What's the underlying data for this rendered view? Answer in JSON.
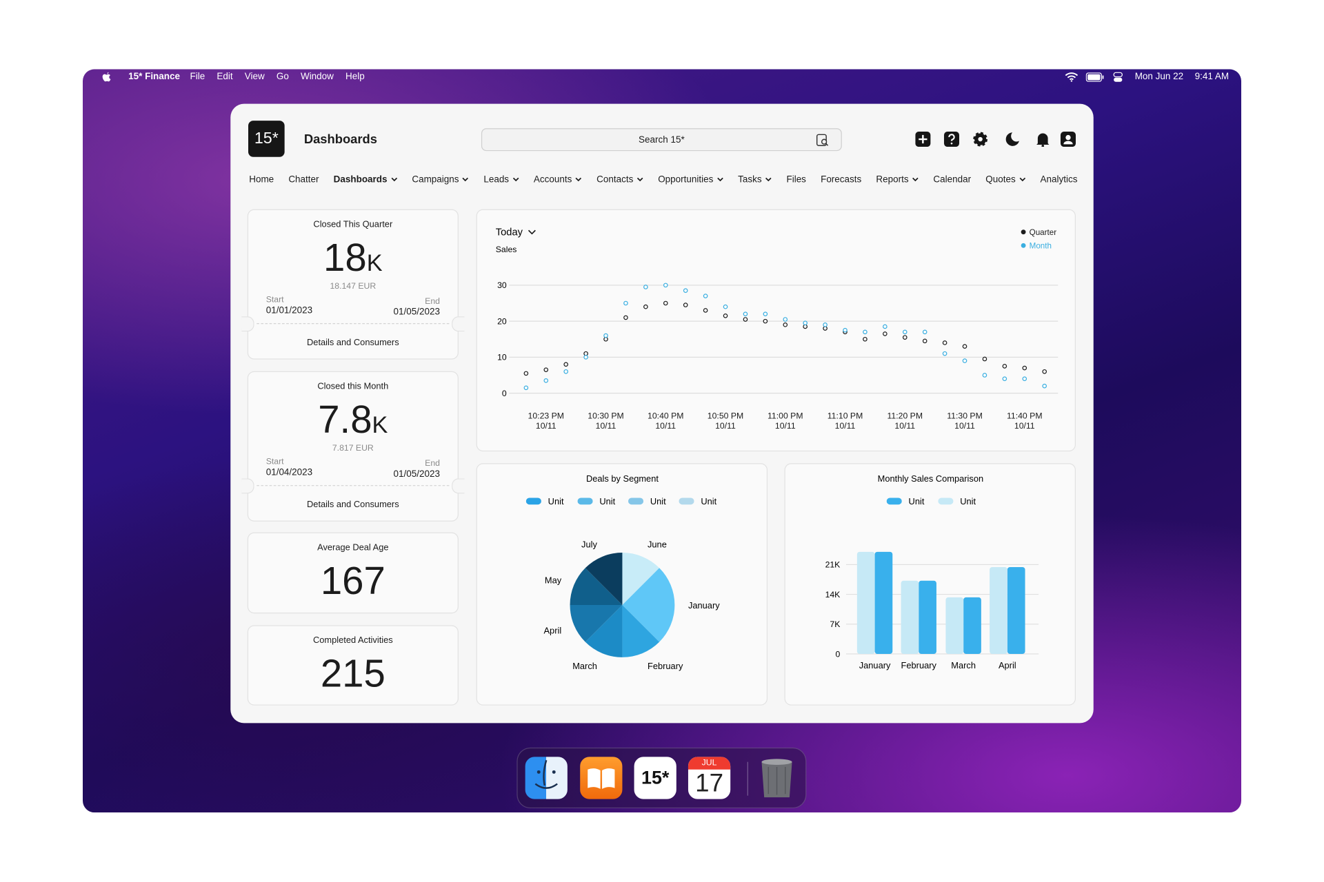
{
  "menu_bar": {
    "app": "15* Finance",
    "menus": [
      "File",
      "Edit",
      "View",
      "Go",
      "Window",
      "Help"
    ],
    "date": "Mon Jun 22",
    "time": "9:41 AM"
  },
  "header": {
    "logo": "15*",
    "title": "Dashboards",
    "search_placeholder": "Search 15*"
  },
  "nav": [
    {
      "label": "Home"
    },
    {
      "label": "Chatter"
    },
    {
      "label": "Dashboards",
      "dropdown": true,
      "active": true
    },
    {
      "label": "Campaigns",
      "dropdown": true
    },
    {
      "label": "Leads",
      "dropdown": true
    },
    {
      "label": "Accounts",
      "dropdown": true
    },
    {
      "label": "Contacts",
      "dropdown": true
    },
    {
      "label": "Opportunities",
      "dropdown": true
    },
    {
      "label": "Tasks",
      "dropdown": true
    },
    {
      "label": "Files"
    },
    {
      "label": "Forecasts"
    },
    {
      "label": "Reports",
      "dropdown": true
    },
    {
      "label": "Calendar"
    },
    {
      "label": "Quotes",
      "dropdown": true
    },
    {
      "label": "Analytics"
    }
  ],
  "cards": [
    {
      "title": "Closed This Quarter",
      "value": "18",
      "unit": "K",
      "subvalue": "18.147 EUR",
      "start_label": "Start",
      "start": "01/01/2023",
      "end_label": "End",
      "end": "01/05/2023",
      "link": "Details and Consumers"
    },
    {
      "title": "Closed this Month",
      "value": "7.8",
      "unit": "K",
      "subvalue": "7.817 EUR",
      "start_label": "Start",
      "start": "01/04/2023",
      "end_label": "End",
      "end": "01/05/2023",
      "link": "Details and Consumers"
    },
    {
      "title": "Average Deal Age",
      "value": "167"
    },
    {
      "title": "Completed Activities",
      "value": "215"
    }
  ],
  "chart_data": [
    {
      "type": "line",
      "title": "Today",
      "subtitle": "Sales",
      "categories": [
        null,
        "10:23 PM\n10/11",
        null,
        null,
        "10:30 PM\n10/11",
        null,
        null,
        "10:40 PM\n10/11",
        null,
        null,
        "10:50 PM\n10/11",
        null,
        null,
        "11:00 PM\n10/11",
        null,
        null,
        "11:10 PM\n10/11",
        null,
        null,
        "11:20 PM\n10/11",
        null,
        null,
        "11:30 PM\n10/11",
        null,
        null,
        "11:40 PM\n10/11",
        null
      ],
      "series": [
        {
          "name": "Quarter",
          "color": "#1c1c1c",
          "values": [
            5.5,
            6.5,
            8,
            11,
            15,
            21,
            24,
            25,
            24.5,
            23,
            21.5,
            20.5,
            20,
            19,
            18.5,
            18,
            17,
            15,
            16.5,
            15.5,
            14.5,
            14,
            13,
            9.5,
            7.5,
            7,
            6
          ]
        },
        {
          "name": "Month",
          "color": "#3aaee0",
          "values": [
            1.5,
            3.5,
            6,
            10,
            16,
            25,
            29.5,
            30,
            28.5,
            27,
            24,
            22,
            22,
            20.5,
            19.5,
            19,
            17.5,
            17,
            18.5,
            17,
            17,
            11,
            9,
            5,
            4,
            4,
            2
          ]
        }
      ],
      "ylim": [
        0,
        30
      ],
      "yticks": [
        0,
        10,
        20,
        30
      ],
      "grid": true,
      "legend": "top-right"
    },
    {
      "type": "pie",
      "title": "Deals by Segment",
      "legend": [
        {
          "name": "Unit",
          "color": "#2aa3e6"
        },
        {
          "name": "Unit",
          "color": "#5bb9e8"
        },
        {
          "name": "Unit",
          "color": "#85c6e8"
        },
        {
          "name": "Unit",
          "color": "#b3d9ec"
        }
      ],
      "categories": [
        "June",
        "January",
        "February",
        "March",
        "April",
        "May",
        "July"
      ],
      "values": [
        12.5,
        25,
        12.5,
        12.5,
        12.5,
        12.5,
        12.5
      ],
      "colors": [
        "#c8ecf8",
        "#5fc7f7",
        "#2ea5e0",
        "#1c8bc6",
        "#1877ac",
        "#105f8b",
        "#0b3d5e"
      ]
    },
    {
      "type": "bar",
      "title": "Monthly Sales Comparison",
      "categories": [
        "January",
        "February",
        "March",
        "April"
      ],
      "series": [
        {
          "name": "Unit",
          "color": "#39b0ec",
          "values": [
            24000,
            17200,
            13300,
            20400
          ]
        },
        {
          "name": "Unit",
          "color": "#c6e9f6",
          "values": [
            24000,
            17200,
            13300,
            20400
          ]
        }
      ],
      "ylim": [
        0,
        24000
      ],
      "yticks": [
        0,
        {
          "value": 7000,
          "label": "7K"
        },
        {
          "value": 14000,
          "label": "14K"
        },
        {
          "value": 21000,
          "label": "21K"
        }
      ],
      "grid": true
    }
  ],
  "dock": {
    "app_icon": "15*",
    "calendar_month": "JUL",
    "calendar_day": "17"
  }
}
